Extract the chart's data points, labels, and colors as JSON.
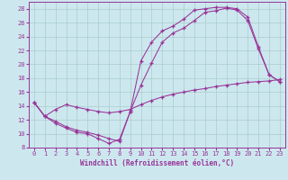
{
  "xlabel": "Windchill (Refroidissement éolien,°C)",
  "xlim": [
    -0.5,
    23.5
  ],
  "ylim": [
    8,
    29
  ],
  "xticks": [
    0,
    1,
    2,
    3,
    4,
    5,
    6,
    7,
    8,
    9,
    10,
    11,
    12,
    13,
    14,
    15,
    16,
    17,
    18,
    19,
    20,
    21,
    22,
    23
  ],
  "yticks": [
    8,
    10,
    12,
    14,
    16,
    18,
    20,
    22,
    24,
    26,
    28
  ],
  "bg_color": "#cce8ee",
  "line_color": "#993399",
  "grid_color": "#aacccc",
  "line1_x": [
    0,
    1,
    2,
    3,
    4,
    5,
    6,
    7,
    8,
    9,
    10,
    11,
    12,
    13,
    14,
    15,
    16,
    17,
    18,
    19,
    20,
    21,
    22,
    23
  ],
  "line1_y": [
    14.5,
    12.5,
    11.5,
    10.8,
    10.2,
    10.0,
    9.3,
    8.6,
    9.2,
    13.2,
    17.0,
    20.2,
    23.2,
    24.5,
    25.2,
    26.3,
    27.5,
    27.7,
    28.1,
    27.8,
    26.3,
    22.2,
    18.5,
    17.5
  ],
  "line2_x": [
    0,
    1,
    2,
    3,
    4,
    5,
    6,
    7,
    8,
    9,
    10,
    11,
    12,
    13,
    14,
    15,
    16,
    17,
    18,
    19,
    20,
    21,
    22,
    23
  ],
  "line2_y": [
    14.5,
    12.5,
    13.5,
    14.2,
    13.8,
    13.5,
    13.2,
    13.0,
    13.2,
    13.5,
    14.2,
    14.8,
    15.3,
    15.7,
    16.0,
    16.3,
    16.5,
    16.8,
    17.0,
    17.2,
    17.4,
    17.5,
    17.6,
    17.8
  ],
  "line3_x": [
    0,
    1,
    2,
    3,
    4,
    5,
    6,
    7,
    8,
    9,
    10,
    11,
    12,
    13,
    14,
    15,
    16,
    17,
    18,
    19,
    20,
    21,
    22,
    23
  ],
  "line3_y": [
    14.5,
    12.5,
    11.8,
    11.0,
    10.5,
    10.2,
    9.8,
    9.3,
    8.9,
    13.2,
    20.5,
    23.2,
    24.8,
    25.5,
    26.5,
    27.8,
    28.0,
    28.2,
    28.2,
    28.0,
    26.8,
    22.5,
    18.5,
    17.5
  ]
}
